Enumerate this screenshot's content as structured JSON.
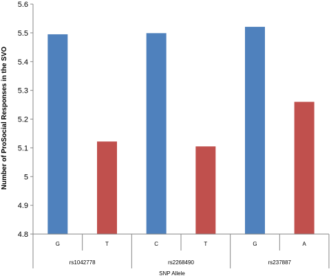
{
  "chart_data": {
    "type": "bar",
    "title": "",
    "xlabel": "SNP Allele",
    "ylabel": "Number of ProSocial Responses in the SVO",
    "ylim": [
      4.8,
      5.6
    ],
    "yticks": [
      "4.8",
      "4.9",
      "5",
      "5.1",
      "5.2",
      "5.3",
      "5.4",
      "5.5",
      "5.6"
    ],
    "groups": [
      {
        "label": "rs1042778",
        "categories": [
          "G",
          "T"
        ],
        "values": [
          5.495,
          5.122
        ]
      },
      {
        "label": "rs2268490",
        "categories": [
          "C",
          "T"
        ],
        "values": [
          5.499,
          5.105
        ]
      },
      {
        "label": "rs237887",
        "categories": [
          "G",
          "A"
        ],
        "values": [
          5.521,
          5.26
        ]
      }
    ],
    "colors": [
      "#4f81bd",
      "#c0504d"
    ],
    "grid": false,
    "legend": "none"
  }
}
